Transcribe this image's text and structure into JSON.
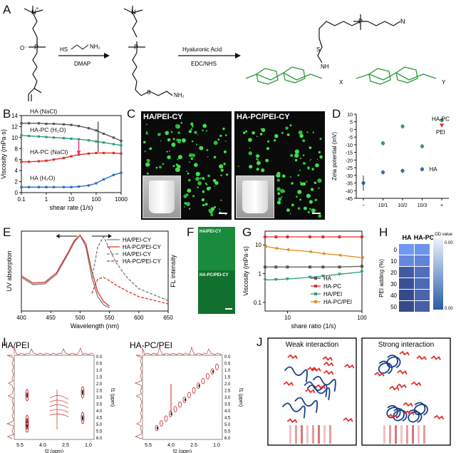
{
  "panels": {
    "A": "A",
    "B": "B",
    "C": "C",
    "D": "D",
    "E": "E",
    "F": "F",
    "G": "G",
    "H": "H",
    "I": "I",
    "J": "J"
  },
  "panelA": {
    "reagent1": "HS",
    "reagent1b": "NH₂",
    "arrow1_label": "DMAP",
    "arrow2_top": "Hyaluronic Acid",
    "arrow2_bottom": "EDC/NHS",
    "nh2": "NH₂",
    "x_sub": "X",
    "y_sub": "Y"
  },
  "panelB": {
    "ylabel": "Viscosity (mPa·s)",
    "xlabel": "shear rate (1/s)",
    "xticks": [
      "0.1",
      "1",
      "10",
      "100",
      "1000"
    ],
    "yticks": [
      "0",
      "2",
      "4",
      "6",
      "8",
      "10",
      "12",
      "14"
    ],
    "labels": [
      "HA (NaCl)",
      "HA-PC (H₂O)",
      "HA-PC (NaCl)",
      "HA (H₂O)"
    ]
  },
  "panelC": {
    "left_title": "HA/PEI-CY",
    "right_title": "HA-PC/PEI-CY"
  },
  "panelD": {
    "ylabel": "Zeta potential (mV)",
    "yticks": [
      "10",
      "5",
      "0",
      "-5",
      "-10",
      "-15",
      "-20",
      "-25",
      "-30",
      "-35",
      "-40",
      "-45"
    ],
    "xticks": [
      "−",
      "10/1",
      "10/2",
      "10/3",
      "+"
    ],
    "legend_hapc": "HA-PC",
    "legend_pei": "PEI",
    "legend_ha": "HA"
  },
  "panelE": {
    "ylabel": "UV absorption",
    "xlabel": "Wavelength (nm)",
    "xticks": [
      "400",
      "450",
      "500",
      "550",
      "600",
      "650"
    ],
    "legend": [
      "HA/PEI-CY",
      "HA-PC/PEI-CY",
      "HA/PEI-CY",
      "HA-PC/PEI-CY"
    ],
    "fl_label": "FL intensity"
  },
  "panelF": {
    "top": "HA/PEI-CY",
    "bottom": "HA-PC/PEI-CY"
  },
  "panelG": {
    "ylabel": "Viscosity (mPa·s)",
    "xlabel": "share ratio (1/s)",
    "xticks": [
      "10",
      "100"
    ],
    "yticks": [
      "10",
      "1",
      "0.1"
    ],
    "legend": [
      "HA",
      "HA-PC",
      "HA/PEI",
      "HA-PC/PEI"
    ]
  },
  "panelH": {
    "col1": "HA",
    "col2": "HA-PC",
    "ylabel": "PEI adding (%)",
    "rows": [
      "0",
      "10",
      "20",
      "30",
      "40",
      "50"
    ],
    "scale_title": "OD value",
    "scale_top": "0.00",
    "scale_bottom": "0.00"
  },
  "panelI": {
    "left_title": "HA/PEI",
    "right_title": "HA-PC/PEI",
    "xticks": [
      "5.5",
      "4.0",
      "2.5",
      "1.0"
    ],
    "yticks": [
      "0.0",
      "0.5",
      "1.0",
      "1.5",
      "2.0",
      "2.5",
      "3.0",
      "3.5",
      "4.0",
      "4.5",
      "5.0",
      "5.5",
      "6.0"
    ],
    "xlabel": "f2 (ppm)",
    "ylabel": "f1 (ppm)"
  },
  "panelJ": {
    "left_title": "Weak interaction",
    "right_title": "Strong interaction"
  },
  "chart_data": [
    {
      "type": "line",
      "panel": "B",
      "xlabel": "shear rate (1/s)",
      "ylabel": "Viscosity (mPa·s)",
      "xscale": "log",
      "xlim": [
        0.1,
        1000
      ],
      "ylim": [
        0,
        14
      ],
      "x": [
        0.1,
        0.2,
        0.5,
        1,
        2,
        5,
        10,
        20,
        50,
        100,
        200,
        500,
        1000
      ],
      "series": [
        {
          "name": "HA (NaCl)",
          "color": "#555555",
          "values": [
            12.6,
            12.6,
            12.6,
            12.5,
            12.5,
            12.4,
            12.3,
            12.1,
            11.7,
            11.3,
            10.7,
            10.0,
            9.4
          ]
        },
        {
          "name": "HA-PC (H₂O)",
          "color": "#2e9a7a",
          "values": [
            10.4,
            10.3,
            10.2,
            10.1,
            10.0,
            9.9,
            9.8,
            9.7,
            9.5,
            9.3,
            9.1,
            8.8,
            8.6
          ]
        },
        {
          "name": "HA-PC (NaCl)",
          "color": "#e0302a",
          "values": [
            5.6,
            5.6,
            5.7,
            5.8,
            6.0,
            6.3,
            6.6,
            6.9,
            7.1,
            7.2,
            7.2,
            7.2,
            7.1
          ]
        },
        {
          "name": "HA (H₂O)",
          "color": "#2a6fc0",
          "values": [
            1.0,
            1.0,
            1.0,
            1.0,
            1.0,
            1.0,
            1.0,
            1.1,
            1.3,
            1.7,
            2.4,
            3.2,
            3.6
          ]
        }
      ]
    },
    {
      "type": "scatter",
      "panel": "D",
      "ylabel": "Zeta potential (mV)",
      "categories": [
        "−",
        "10/1",
        "10/2",
        "10/3",
        "+"
      ],
      "ylim": [
        -45,
        10
      ],
      "series": [
        {
          "name": "HA-PC",
          "color": "#2e9a7a",
          "values": [
            null,
            -9,
            2,
            -11,
            6
          ]
        },
        {
          "name": "HA",
          "color": "#3a6ab8",
          "values": [
            -35,
            -28,
            -27,
            -26,
            null
          ]
        },
        {
          "name": "PEI",
          "color": "#e0302a",
          "values": [
            null,
            null,
            null,
            null,
            2
          ]
        }
      ]
    },
    {
      "type": "line",
      "panel": "E",
      "xlabel": "Wavelength (nm)",
      "ylabel": "UV absorption",
      "xlim": [
        400,
        650
      ],
      "x": [
        400,
        420,
        440,
        460,
        480,
        490,
        500,
        510,
        520,
        530,
        540,
        550,
        560,
        580,
        600,
        650
      ],
      "series": [
        {
          "name": "HA/PEI-CY",
          "color": "#7a7a7a",
          "values": [
            0.42,
            0.33,
            0.34,
            0.46,
            0.72,
            0.86,
            0.95,
            0.8,
            0.42,
            0.18,
            0.08,
            0.04,
            null,
            null,
            null,
            null
          ]
        },
        {
          "name": "HA-PC/PEI-CY",
          "color": "#e0302a",
          "values": [
            0.44,
            0.35,
            0.36,
            0.48,
            0.74,
            0.88,
            0.95,
            0.84,
            0.5,
            0.24,
            0.12,
            0.06,
            null,
            null,
            null,
            null
          ]
        },
        {
          "name": "HA/PEI-CY",
          "color": "#7a7a7a",
          "dash": true,
          "values": [
            null,
            null,
            null,
            null,
            null,
            null,
            null,
            null,
            0.4,
            0.8,
            0.93,
            0.78,
            0.62,
            0.42,
            0.28,
            0.13
          ]
        },
        {
          "name": "HA-PC/PEI-CY",
          "color": "#e0302a",
          "dash": true,
          "values": [
            null,
            null,
            null,
            null,
            null,
            null,
            null,
            null,
            0.22,
            0.4,
            0.42,
            0.38,
            0.33,
            0.25,
            0.18,
            0.09
          ]
        }
      ]
    },
    {
      "type": "line",
      "panel": "G",
      "xlabel": "share ratio (1/s)",
      "ylabel": "Viscosity (mPa·s)",
      "xscale": "log",
      "yscale": "log",
      "xlim": [
        5,
        100
      ],
      "ylim": [
        0.05,
        30
      ],
      "x": [
        5,
        7,
        10,
        20,
        30,
        50,
        100
      ],
      "series": [
        {
          "name": "HA",
          "color": "#555555",
          "values": [
            1.7,
            1.7,
            1.7,
            1.7,
            1.7,
            1.7,
            1.8
          ]
        },
        {
          "name": "HA-PC",
          "color": "#e0302a",
          "values": [
            19,
            19,
            19,
            19,
            19,
            19,
            19
          ]
        },
        {
          "name": "HA/PEI",
          "color": "#2e9a7a",
          "values": [
            0.6,
            0.62,
            0.65,
            0.75,
            0.82,
            0.95,
            1.15
          ]
        },
        {
          "name": "HA-PC/PEI",
          "color": "#e08a1e",
          "values": [
            9,
            7.6,
            6.8,
            5.8,
            5.0,
            4.4,
            3.6
          ]
        }
      ]
    },
    {
      "type": "heatmap",
      "panel": "H",
      "columns": [
        "HA",
        "HA-PC"
      ],
      "rows": [
        "0",
        "10",
        "20",
        "30",
        "40",
        "50"
      ],
      "values": [
        [
          0.15,
          0.2
        ],
        [
          0.3,
          0.35
        ],
        [
          0.75,
          0.55
        ],
        [
          0.85,
          0.6
        ],
        [
          0.9,
          0.65
        ],
        [
          0.9,
          0.7
        ]
      ]
    }
  ]
}
